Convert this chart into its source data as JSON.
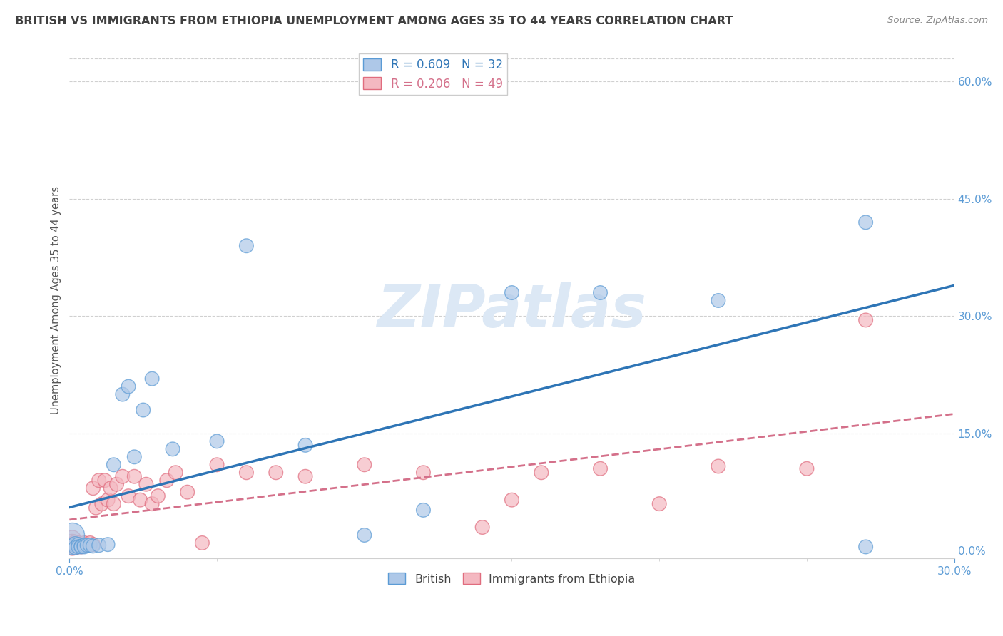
{
  "title": "BRITISH VS IMMIGRANTS FROM ETHIOPIA UNEMPLOYMENT AMONG AGES 35 TO 44 YEARS CORRELATION CHART",
  "source": "Source: ZipAtlas.com",
  "ylabel": "Unemployment Among Ages 35 to 44 years",
  "british_R": 0.609,
  "british_N": 32,
  "ethiopia_R": 0.206,
  "ethiopia_N": 49,
  "british_color": "#aec8e8",
  "british_edge_color": "#5b9bd5",
  "british_line_color": "#2e75b6",
  "ethiopia_color": "#f4b8c1",
  "ethiopia_edge_color": "#e06c7e",
  "ethiopia_line_color": "#d4708a",
  "watermark_color": "#dce8f5",
  "grid_color": "#d0d0d0",
  "background_color": "#ffffff",
  "title_color": "#404040",
  "axis_color": "#5b9bd5",
  "xlim": [
    0.0,
    0.3
  ],
  "ylim": [
    -0.01,
    0.65
  ],
  "x_ticks_minor": [
    0.05,
    0.1,
    0.15,
    0.2,
    0.25
  ],
  "y_ticks_right": [
    0.0,
    0.15,
    0.3,
    0.45,
    0.6
  ],
  "british_x": [
    0.001,
    0.001,
    0.002,
    0.002,
    0.003,
    0.003,
    0.004,
    0.004,
    0.005,
    0.005,
    0.006,
    0.007,
    0.008,
    0.01,
    0.013,
    0.015,
    0.018,
    0.02,
    0.022,
    0.025,
    0.028,
    0.035,
    0.05,
    0.06,
    0.08,
    0.1,
    0.12,
    0.15,
    0.18,
    0.22,
    0.27,
    0.27
  ],
  "british_y": [
    0.02,
    0.005,
    0.008,
    0.004,
    0.008,
    0.005,
    0.006,
    0.005,
    0.007,
    0.005,
    0.007,
    0.007,
    0.006,
    0.007,
    0.008,
    0.11,
    0.2,
    0.21,
    0.12,
    0.18,
    0.22,
    0.13,
    0.14,
    0.39,
    0.135,
    0.02,
    0.052,
    0.33,
    0.33,
    0.32,
    0.42,
    0.005
  ],
  "british_sizes": [
    600,
    250,
    250,
    200,
    200,
    200,
    200,
    200,
    200,
    200,
    200,
    200,
    200,
    200,
    200,
    200,
    200,
    200,
    200,
    200,
    200,
    200,
    200,
    200,
    200,
    200,
    200,
    200,
    200,
    200,
    200,
    200
  ],
  "ethiopia_x": [
    0.001,
    0.001,
    0.001,
    0.002,
    0.002,
    0.002,
    0.003,
    0.003,
    0.004,
    0.004,
    0.005,
    0.005,
    0.006,
    0.007,
    0.008,
    0.008,
    0.009,
    0.01,
    0.011,
    0.012,
    0.013,
    0.014,
    0.015,
    0.016,
    0.018,
    0.02,
    0.022,
    0.024,
    0.026,
    0.028,
    0.03,
    0.033,
    0.036,
    0.04,
    0.045,
    0.05,
    0.06,
    0.07,
    0.08,
    0.1,
    0.12,
    0.14,
    0.16,
    0.18,
    0.2,
    0.22,
    0.25,
    0.27,
    0.15
  ],
  "ethiopia_y": [
    0.015,
    0.01,
    0.005,
    0.01,
    0.008,
    0.005,
    0.01,
    0.006,
    0.008,
    0.005,
    0.01,
    0.006,
    0.008,
    0.01,
    0.008,
    0.08,
    0.055,
    0.09,
    0.06,
    0.09,
    0.065,
    0.08,
    0.06,
    0.085,
    0.095,
    0.07,
    0.095,
    0.065,
    0.085,
    0.06,
    0.07,
    0.09,
    0.1,
    0.075,
    0.01,
    0.11,
    0.1,
    0.1,
    0.095,
    0.11,
    0.1,
    0.03,
    0.1,
    0.105,
    0.06,
    0.108,
    0.105,
    0.295,
    0.065
  ],
  "ethiopia_sizes": [
    300,
    300,
    300,
    250,
    250,
    250,
    200,
    200,
    200,
    200,
    200,
    200,
    200,
    200,
    200,
    200,
    200,
    200,
    200,
    200,
    200,
    200,
    200,
    200,
    200,
    200,
    200,
    200,
    200,
    200,
    200,
    200,
    200,
    200,
    200,
    200,
    200,
    200,
    200,
    200,
    200,
    200,
    200,
    200,
    200,
    200,
    200,
    200,
    200
  ]
}
